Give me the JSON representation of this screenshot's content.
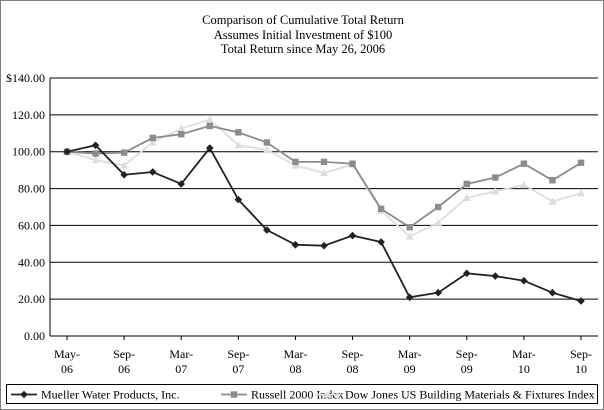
{
  "chart_data": {
    "type": "line",
    "title_lines": [
      "Comparison of Cumulative Total Return",
      "Assumes Initial Investment of $100",
      "Total Return since May 26, 2006"
    ],
    "xlabel": "",
    "ylabel": "",
    "ylim": [
      0,
      140
    ],
    "yticks": [
      "$140.00",
      "120.00",
      "100.00",
      "80.00",
      "60.00",
      "40.00",
      "20.00",
      "0.00"
    ],
    "xtick_labels": [
      {
        "top": "May-",
        "bottom": "06"
      },
      {
        "top": "Sep-",
        "bottom": "06"
      },
      {
        "top": "Mar-",
        "bottom": "07"
      },
      {
        "top": "Sep-",
        "bottom": "07"
      },
      {
        "top": "Mar-",
        "bottom": "08"
      },
      {
        "top": "Sep-",
        "bottom": "08"
      },
      {
        "top": "Mar-",
        "bottom": "09"
      },
      {
        "top": "Sep-",
        "bottom": "09"
      },
      {
        "top": "Mar-",
        "bottom": "10"
      },
      {
        "top": "Sep-",
        "bottom": "10"
      }
    ],
    "x": [
      "May-06",
      "Jun-06",
      "Sep-06",
      "Dec-06",
      "Mar-07",
      "Jun-07",
      "Sep-07",
      "Dec-07",
      "Mar-08",
      "Jun-08",
      "Sep-08",
      "Dec-08",
      "Mar-09",
      "Jun-09",
      "Sep-09",
      "Dec-09",
      "Mar-10",
      "Jun-10",
      "Sep-10"
    ],
    "grid": "horizontal",
    "legend_position": "bottom",
    "series": [
      {
        "name": "Mueller Water Products, Inc.",
        "color": "#222222",
        "marker": "diamond",
        "values": [
          100,
          103.5,
          87.5,
          89,
          82.5,
          102,
          74,
          57.5,
          49.5,
          49,
          54.5,
          51,
          21,
          23.5,
          34,
          32.5,
          30,
          23.5,
          19
        ]
      },
      {
        "name": "Russell 2000 Index",
        "color": "#8c8c8c",
        "marker": "square",
        "values": [
          100,
          99,
          99.5,
          107.5,
          109.5,
          114,
          110.5,
          105,
          94.5,
          94.5,
          93.5,
          69,
          59,
          70,
          82.5,
          86,
          93.5,
          84.5,
          94
        ]
      },
      {
        "name": "Dow Jones US Building Materials & Fixtures Index",
        "color": "#dddddd",
        "marker": "triangle",
        "values": [
          100,
          95.5,
          92.5,
          105,
          112.5,
          117.5,
          103.5,
          101,
          92.5,
          88.5,
          93,
          68,
          54,
          61.5,
          75,
          78.5,
          82,
          73,
          77.5
        ]
      }
    ]
  }
}
